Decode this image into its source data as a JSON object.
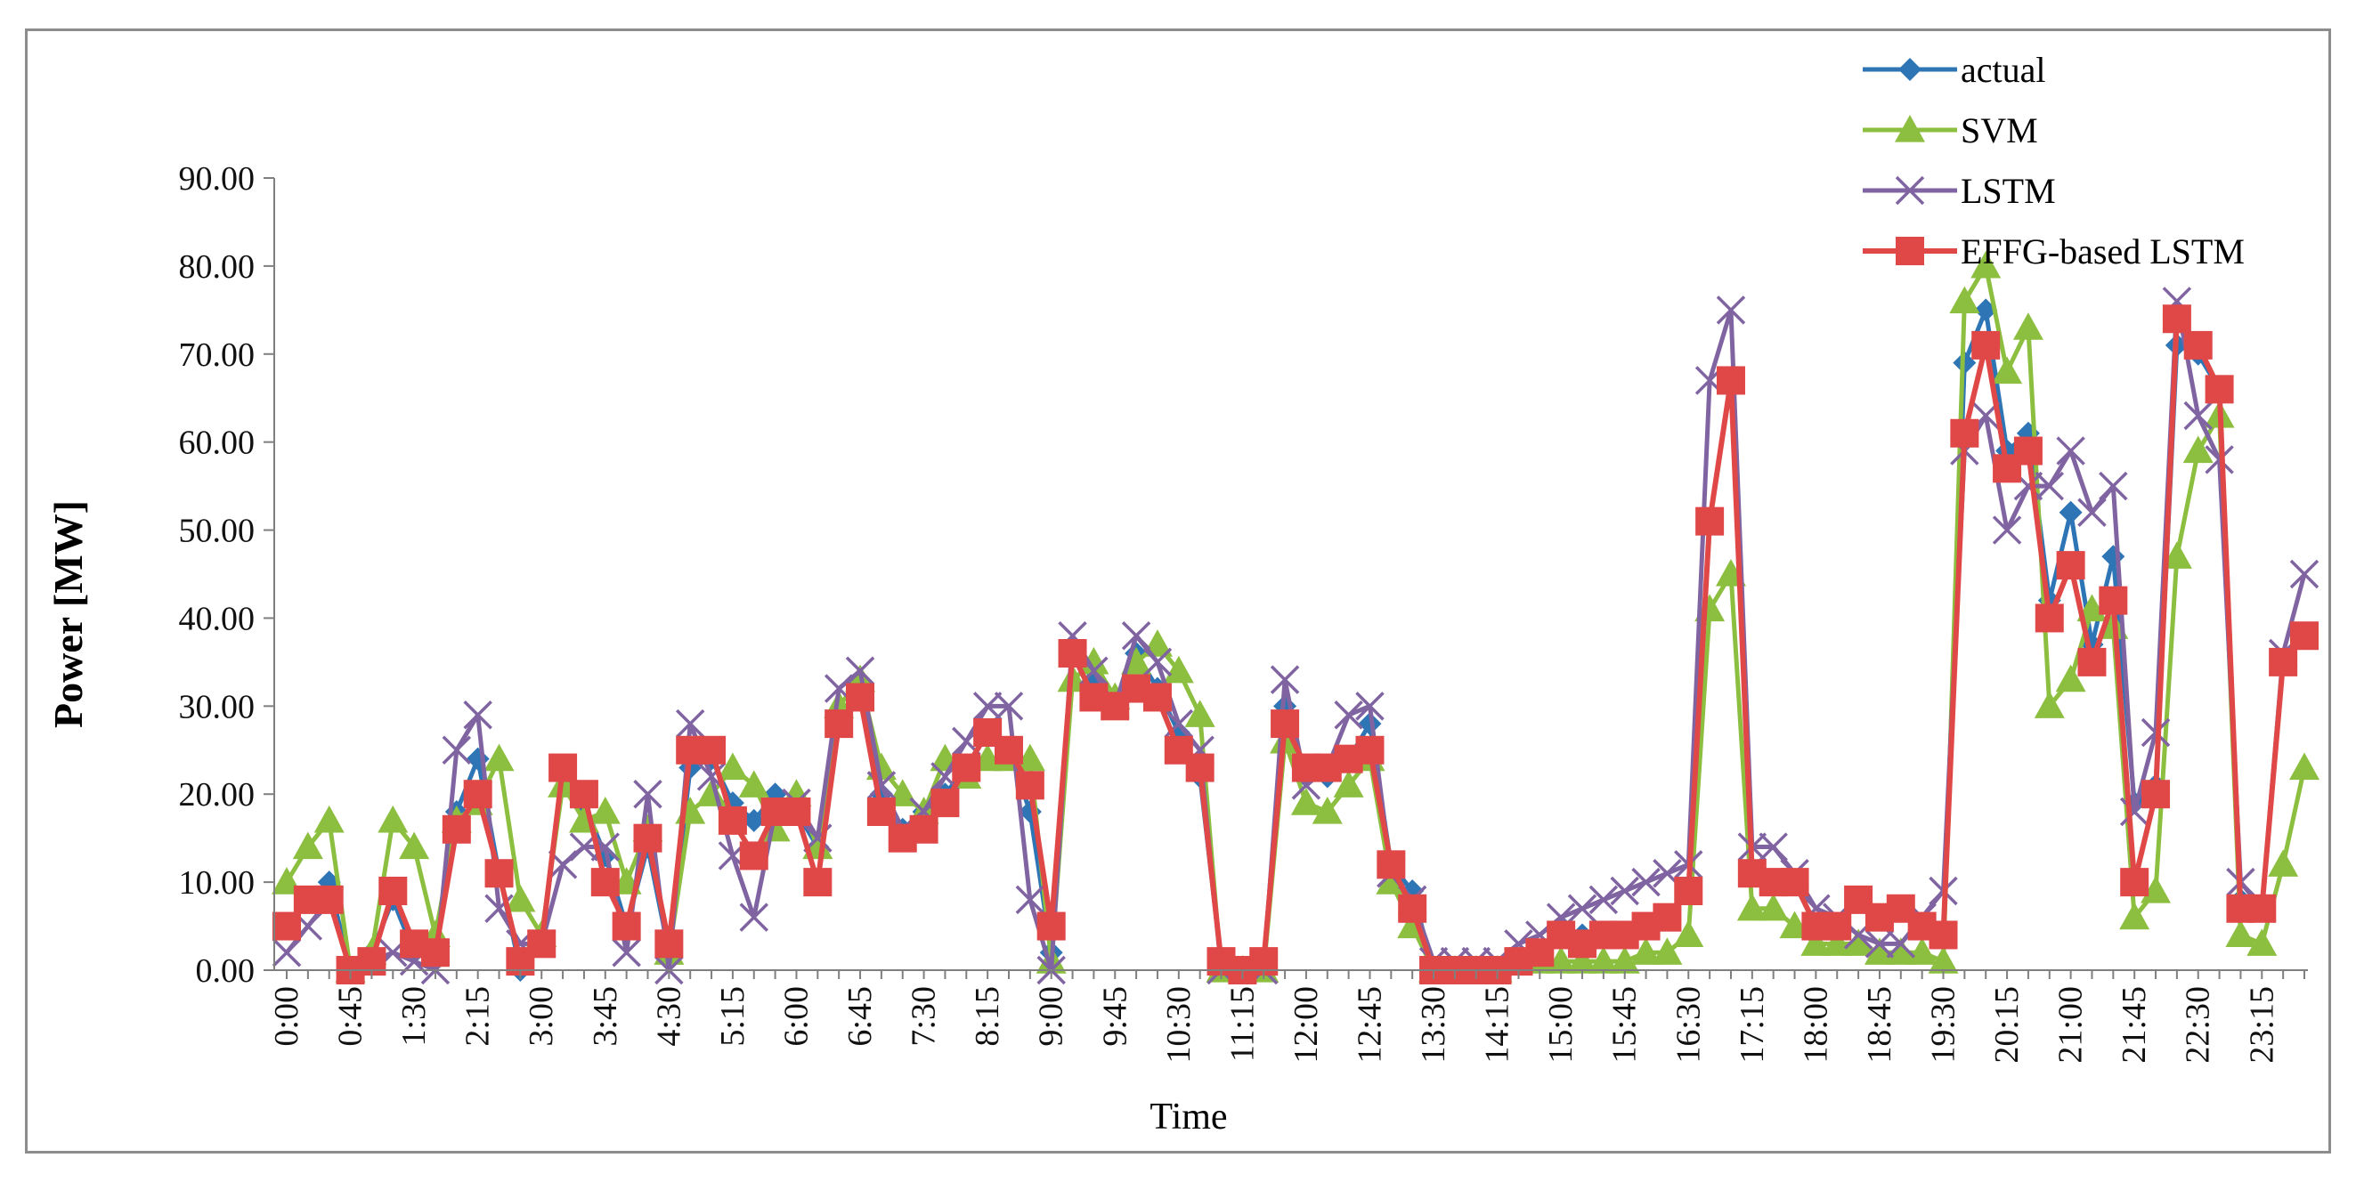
{
  "chart_data": {
    "type": "line",
    "title": "",
    "xlabel": "Time",
    "ylabel": "Power [MW]",
    "ylim": [
      0,
      90
    ],
    "yticks": [
      "0.00",
      "10.00",
      "20.00",
      "30.00",
      "40.00",
      "50.00",
      "60.00",
      "70.00",
      "80.00",
      "90.00"
    ],
    "x_tick_labels": [
      "0:00",
      "0:45",
      "1:30",
      "2:15",
      "3:00",
      "3:45",
      "4:30",
      "5:15",
      "6:00",
      "6:45",
      "7:30",
      "8:15",
      "9:00",
      "9:45",
      "10:30",
      "11:15",
      "12:00",
      "12:45",
      "13:30",
      "14:15",
      "15:00",
      "15:45",
      "16:30",
      "17:15",
      "18:00",
      "18:45",
      "19:30",
      "20:15",
      "21:00",
      "21:45",
      "22:30",
      "23:15"
    ],
    "x_tick_step": 3,
    "grid": false,
    "legend_position": "top-right",
    "colors": {
      "actual": "#2e75b6",
      "SVM": "#8cbf3f",
      "LSTM": "#8064a2",
      "EFFG": "#e04848"
    },
    "series": [
      {
        "name": "actual",
        "marker": "diamond",
        "values": [
          5,
          8,
          10,
          0,
          2,
          8,
          2,
          2,
          18,
          24,
          11,
          0,
          3,
          22,
          19,
          13,
          5,
          14,
          2,
          23,
          24,
          19,
          17,
          20,
          18,
          14,
          28,
          32,
          20,
          16,
          18,
          20,
          23,
          27,
          25,
          18,
          2,
          36,
          33,
          30,
          36,
          32,
          27,
          22,
          1,
          0,
          1,
          30,
          22,
          22,
          24,
          28,
          12,
          9,
          0,
          0,
          0,
          0,
          1,
          2,
          5,
          4,
          4,
          4,
          5,
          6,
          9,
          51,
          67,
          11,
          10,
          10,
          5,
          5,
          8,
          6,
          7,
          5,
          4,
          69,
          75,
          59,
          61,
          42,
          52,
          37,
          47,
          19,
          21,
          71,
          70,
          66,
          8,
          7,
          35,
          38
        ]
      },
      {
        "name": "SVM",
        "marker": "triangle",
        "values": [
          10,
          14,
          17,
          0,
          2,
          17,
          14,
          4,
          17,
          19,
          24,
          8,
          4,
          21,
          17,
          18,
          10,
          16,
          2,
          18,
          20,
          23,
          21,
          16,
          20,
          14,
          30,
          33,
          23,
          20,
          18,
          24,
          22,
          24,
          24,
          24,
          1,
          33,
          35,
          31,
          35,
          37,
          34,
          29,
          0,
          0,
          0,
          26,
          19,
          18,
          21,
          24,
          10,
          5,
          0,
          0,
          0,
          0,
          1,
          1,
          1,
          1,
          1,
          1,
          2,
          2,
          4,
          41,
          45,
          7,
          7,
          5,
          3,
          3,
          3,
          2,
          2,
          2,
          1,
          76,
          80,
          68,
          73,
          30,
          33,
          41,
          39,
          6,
          9,
          47,
          59,
          63,
          4,
          3,
          12,
          23
        ]
      },
      {
        "name": "LSTM",
        "marker": "x",
        "values": [
          2,
          5,
          8,
          0,
          1,
          2,
          1,
          0,
          25,
          29,
          7,
          3,
          3,
          12,
          14,
          14,
          2,
          20,
          0,
          28,
          22,
          13,
          6,
          18,
          19,
          15,
          32,
          34,
          21,
          16,
          18,
          22,
          26,
          30,
          30,
          8,
          0,
          38,
          34,
          30,
          38,
          35,
          28,
          25,
          0,
          0,
          0,
          33,
          21,
          23,
          29,
          30,
          11,
          8,
          1,
          1,
          1,
          1,
          3,
          4,
          6,
          7,
          8,
          9,
          10,
          11,
          12,
          67,
          75,
          14,
          14,
          11,
          7,
          6,
          4,
          3,
          3,
          6,
          9,
          59,
          63,
          50,
          55,
          55,
          59,
          52,
          55,
          18,
          27,
          76,
          63,
          58,
          10,
          7,
          36,
          45
        ]
      },
      {
        "name": "EFFG-based LSTM",
        "marker": "square",
        "values": [
          5,
          8,
          8,
          0,
          1,
          9,
          3,
          2,
          16,
          20,
          11,
          1,
          3,
          23,
          20,
          10,
          5,
          15,
          3,
          25,
          25,
          17,
          13,
          18,
          18,
          10,
          28,
          31,
          18,
          15,
          16,
          19,
          23,
          27,
          25,
          21,
          5,
          36,
          31,
          30,
          32,
          31,
          25,
          23,
          1,
          0,
          1,
          28,
          23,
          23,
          24,
          25,
          12,
          7,
          0,
          0,
          0,
          0,
          1,
          2,
          4,
          3,
          4,
          4,
          5,
          6,
          9,
          51,
          67,
          11,
          10,
          10,
          5,
          5,
          8,
          6,
          7,
          5,
          4,
          61,
          71,
          57,
          59,
          40,
          46,
          35,
          42,
          10,
          20,
          74,
          71,
          66,
          7,
          7,
          35,
          38
        ]
      }
    ]
  }
}
